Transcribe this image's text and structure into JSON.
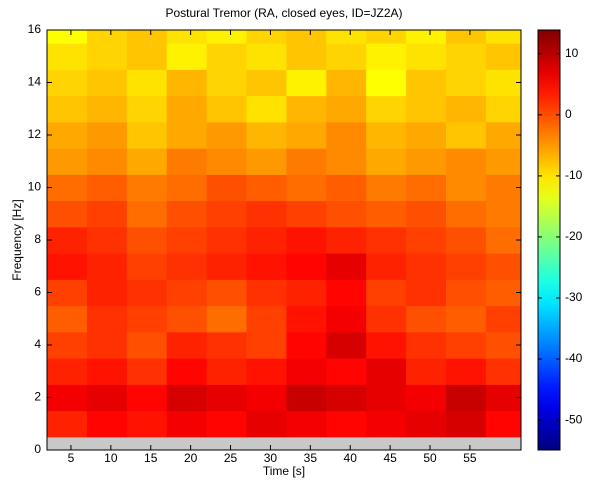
{
  "chart_data": {
    "type": "heatmap",
    "title": "Postural Tremor (RA, closed eyes, ID=JZ2A)",
    "x_label": "Time [s]",
    "y_label": "Frequency [Hz]",
    "xbins": [
      2,
      7,
      12,
      17,
      22,
      27,
      32,
      37,
      42,
      47,
      52,
      57,
      61.4
    ],
    "ybins": [
      0.5,
      1.5,
      2.5,
      3.5,
      4.5,
      5.5,
      6.5,
      7.5,
      8.5,
      9.5,
      10.5,
      11.5,
      12.5,
      13.5,
      14.5,
      15.5,
      16
    ],
    "z": [
      [
        3,
        5,
        4,
        6,
        5,
        7,
        6,
        5,
        6,
        7,
        8,
        5
      ],
      [
        6,
        7,
        5,
        8,
        7,
        6,
        9,
        8,
        7,
        6,
        9,
        7
      ],
      [
        3,
        4,
        2,
        5,
        3,
        4,
        6,
        5,
        7,
        3,
        4,
        2
      ],
      [
        1,
        2,
        0,
        3,
        2,
        1,
        5,
        8,
        4,
        2,
        1,
        0
      ],
      [
        -1,
        2,
        1,
        0,
        -2,
        1,
        4,
        6,
        2,
        0,
        -1,
        1
      ],
      [
        1,
        3,
        2,
        1,
        0,
        2,
        3,
        5,
        1,
        2,
        0,
        -1
      ],
      [
        4,
        3,
        1,
        2,
        3,
        4,
        5,
        7,
        3,
        2,
        1,
        0
      ],
      [
        3,
        2,
        0,
        1,
        2,
        3,
        4,
        3,
        2,
        1,
        0,
        -2
      ],
      [
        0,
        1,
        -2,
        0,
        1,
        2,
        1,
        0,
        -1,
        0,
        -2,
        -3
      ],
      [
        -2,
        -1,
        -3,
        -2,
        0,
        -1,
        -2,
        -1,
        -3,
        -2,
        -4,
        -3
      ],
      [
        -5,
        -4,
        -6,
        -3,
        -4,
        -5,
        -3,
        -4,
        -6,
        -5,
        -4,
        -5
      ],
      [
        -6,
        -5,
        -8,
        -6,
        -5,
        -7,
        -6,
        -4,
        -7,
        -6,
        -8,
        -6
      ],
      [
        -8,
        -7,
        -9,
        -6,
        -8,
        -10,
        -7,
        -6,
        -9,
        -8,
        -7,
        -9
      ],
      [
        -9,
        -8,
        -10,
        -7,
        -9,
        -8,
        -11,
        -7,
        -12,
        -8,
        -9,
        -10
      ],
      [
        -10,
        -9,
        -8,
        -11,
        -9,
        -10,
        -8,
        -9,
        -11,
        -10,
        -9,
        -8
      ],
      [
        -12,
        -9,
        -8,
        -10,
        -11,
        -9,
        -8,
        -10,
        -9,
        -11,
        -8,
        -10
      ]
    ],
    "xlim": [
      2,
      61.4
    ],
    "xticks": [
      5,
      10,
      15,
      20,
      25,
      30,
      35,
      40,
      45,
      50,
      55
    ],
    "ylim": [
      0,
      16
    ],
    "yticks": [
      0,
      2,
      4,
      6,
      8,
      10,
      12,
      14,
      16
    ],
    "colormap": "jet",
    "clim": [
      -54.9,
      13.9
    ],
    "cticks": [
      -50,
      -40,
      -30,
      -20,
      -10,
      0,
      10
    ]
  }
}
